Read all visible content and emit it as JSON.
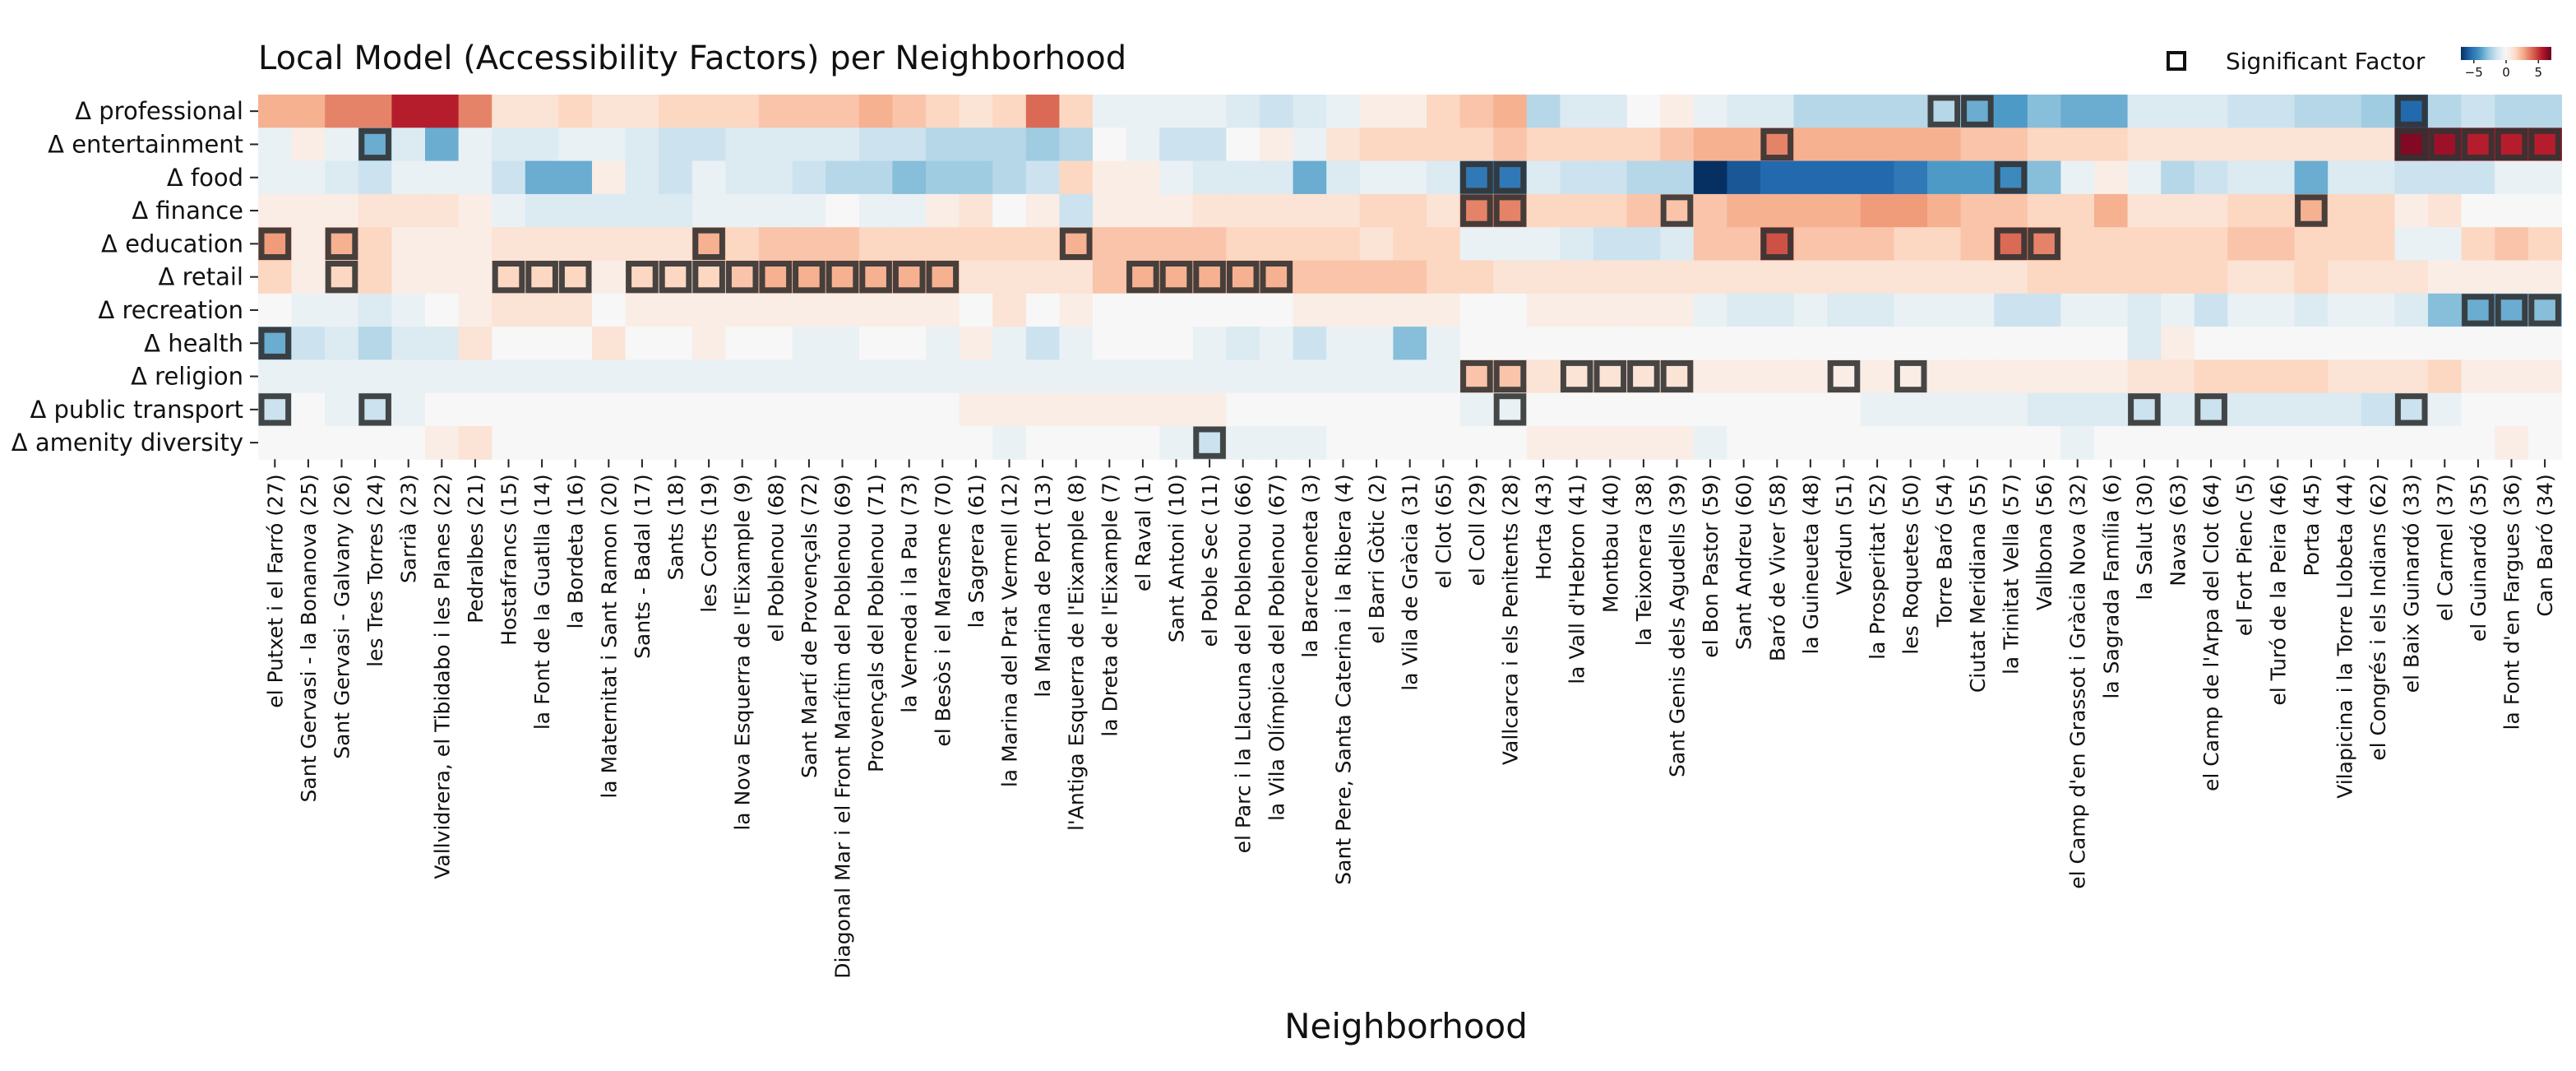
{
  "chart_data": {
    "type": "heatmap",
    "title": "Local Model (Accessibility Factors) per Neighborhood",
    "xlabel": "Neighborhood",
    "ylabel": "",
    "legend": {
      "marker_label": "Significant Factor",
      "placement": "top-right"
    },
    "colorbar": {
      "colormap": "RdBu_r",
      "range": [
        -7,
        7
      ],
      "ticks": [
        -5,
        0,
        5
      ],
      "tick_labels": [
        "−5",
        "0",
        "5"
      ],
      "placement": "top-right"
    },
    "rows": [
      "Δ professional",
      "Δ entertainment",
      "Δ food",
      "Δ finance",
      "Δ education",
      "Δ retail",
      "Δ recreation",
      "Δ health",
      "Δ religion",
      "Δ public transport",
      "Δ amenity diversity"
    ],
    "columns": [
      "el Putxet i el Farró (27)",
      "Sant Gervasi - la Bonanova (25)",
      "Sant Gervasi - Galvany (26)",
      "les Tres Torres (24)",
      "Sarrià (23)",
      "Vallvidrera, el Tibidabo i les Planes (22)",
      "Pedralbes (21)",
      "Hostafrancs (15)",
      "la Font de la Guatlla (14)",
      "la Bordeta (16)",
      "la Maternitat i Sant Ramon (20)",
      "Sants - Badal (17)",
      "Sants (18)",
      "les Corts (19)",
      "la Nova Esquerra de l'Eixample (9)",
      "el Poblenou (68)",
      "Sant Martí de Provençals (72)",
      "Diagonal Mar i el Front Marítim del Poblenou (69)",
      "Provençals del Poblenou (71)",
      "la Verneda i la Pau (73)",
      "el Besòs i el Maresme (70)",
      "la Sagrera (61)",
      "la Marina del Prat Vermell (12)",
      "la Marina de Port (13)",
      "l'Antiga Esquerra de l'Eixample (8)",
      "la Dreta de l'Eixample (7)",
      "el Raval (1)",
      "Sant Antoni (10)",
      "el Poble Sec (11)",
      "el Parc i la Llacuna del Poblenou (66)",
      "la Vila Olímpica del Poblenou (67)",
      "la Barceloneta (3)",
      "Sant Pere, Santa Caterina i la Ribera (4)",
      "el Barri Gòtic (2)",
      "la Vila de Gràcia (31)",
      "el Clot (65)",
      "el Coll (29)",
      "Vallcarca i els Penitents (28)",
      "Horta (43)",
      "la Vall d'Hebron (41)",
      "Montbau (40)",
      "la Teixonera (38)",
      "Sant Genis dels Agudells (39)",
      "el Bon Pastor (59)",
      "Sant Andreu (60)",
      "Baró de Viver (58)",
      "la Guineueta (48)",
      "Verdun (51)",
      "la Prosperitat (52)",
      "les Roquetes (50)",
      "Torre Baró (54)",
      "Ciutat Meridiana (55)",
      "la Trinitat Vella (57)",
      "Vallbona (56)",
      "el Camp d'en Grassot i Gràcia Nova (32)",
      "la Sagrada Família (6)",
      "la Salut (30)",
      "Navas (63)",
      "el Camp de l'Arpa del Clot (64)",
      "el Fort Pienc (5)",
      "el Turó de la Peira (46)",
      "Porta (45)",
      "Vilapicina i la Torre Llobeta (44)",
      "el Congrés i els Indians (62)",
      "el Baix Guinardó (33)",
      "el Carmel (37)",
      "el Guinardó (35)",
      "la Font d'en Fargues (36)",
      "Can Baró (34)"
    ],
    "values": [
      [
        2.5,
        2.5,
        3.5,
        3.5,
        5.5,
        5.5,
        3.5,
        1,
        1,
        1.5,
        1,
        1,
        1.5,
        1.5,
        1.5,
        2,
        2,
        2,
        2.5,
        2,
        1.5,
        1,
        1.5,
        4,
        1.5,
        -0.5,
        -0.5,
        -0.5,
        -0.5,
        -1,
        -1.5,
        -1,
        -0.5,
        0.5,
        0.5,
        1.5,
        2,
        2.5,
        -2,
        -1,
        -1,
        0,
        0.5,
        -0.5,
        -1,
        -1,
        -2,
        -2,
        -2,
        -2,
        -2,
        -3.5,
        -4,
        -3,
        -3.5,
        -3.5,
        -1,
        -1,
        -1,
        -1.5,
        -1.5,
        -2,
        -2,
        -2.5,
        -5.5,
        -2,
        -1.5,
        -2,
        -2
      ],
      [
        -0.5,
        0.5,
        -0.5,
        -3.5,
        -1,
        -3.5,
        -0.5,
        -1,
        -1,
        -0.5,
        -0.5,
        -1,
        -1.5,
        -1.5,
        -1,
        -1,
        -1,
        -1,
        -1.5,
        -1.5,
        -2,
        -2,
        -2,
        -2.5,
        -2,
        0,
        -0.5,
        -1.5,
        -1.5,
        0,
        0.5,
        -0.5,
        1,
        1.5,
        1.5,
        1.5,
        1.5,
        2,
        1.5,
        1.5,
        1.5,
        1.5,
        2,
        2.5,
        2.5,
        3.5,
        2.5,
        2.5,
        2.5,
        2.5,
        2.5,
        2,
        2,
        1.5,
        1.5,
        1.5,
        1,
        1,
        1,
        1,
        1,
        1,
        1,
        1,
        6.5,
        6,
        5.5,
        5.5,
        5.5
      ],
      [
        -0.5,
        -0.5,
        -1,
        -1.5,
        -0.5,
        -0.5,
        -0.5,
        -1.5,
        -3.5,
        -3.5,
        0.5,
        -1,
        -1.5,
        -0.5,
        -1,
        -1,
        -1.5,
        -2,
        -2,
        -3,
        -2.5,
        -2.5,
        -2,
        -1.5,
        1.5,
        0.5,
        0.5,
        -0.5,
        -1,
        -1,
        -1,
        -3.5,
        -1,
        -0.5,
        -0.5,
        -1,
        -5,
        -5,
        -1,
        -1.5,
        -1.5,
        -2,
        -2,
        -7,
        -6,
        -5.5,
        -5.5,
        -5.5,
        -5.5,
        -5,
        -4,
        -4,
        -4.5,
        -3,
        -0.5,
        0.5,
        -0.5,
        -2,
        -1.5,
        -1,
        -1,
        -3.5,
        -1,
        -1,
        -1.5,
        -1.5,
        -1.5,
        -0.5,
        -0.5
      ],
      [
        0.5,
        0.5,
        0.5,
        1,
        1,
        1,
        0.5,
        -0.5,
        -1,
        -1,
        -1,
        -1,
        -1,
        -0.5,
        -0.5,
        -0.5,
        -0.5,
        0,
        -0.5,
        -0.5,
        0.5,
        1,
        0,
        0.5,
        -1.5,
        0.5,
        0.5,
        0.5,
        1,
        1,
        1,
        1,
        1,
        1.5,
        1.5,
        1,
        3.5,
        3.5,
        1.5,
        1.5,
        1.5,
        2,
        2,
        2,
        2.5,
        2.5,
        2.5,
        2.5,
        3,
        3,
        2.5,
        2,
        2,
        1.5,
        1.5,
        2.5,
        1,
        1,
        1,
        1.5,
        1.5,
        2.5,
        1.5,
        1.5,
        0.5,
        1,
        0,
        0,
        0
      ],
      [
        3,
        0.5,
        2.5,
        1.5,
        0.5,
        0.5,
        0.5,
        1,
        1,
        1,
        1,
        1,
        1,
        2.5,
        1.5,
        2,
        2,
        2,
        1.5,
        1.5,
        1.5,
        1.5,
        1.5,
        1.5,
        2.5,
        2,
        2,
        2,
        2,
        1.5,
        1.5,
        1.5,
        1.5,
        1,
        1.5,
        1.5,
        -0.5,
        -0.5,
        -0.5,
        -1,
        -1.5,
        -1.5,
        -1,
        2,
        2,
        4.5,
        2,
        2,
        2,
        1.5,
        1.5,
        2,
        4,
        3.5,
        1.5,
        1.5,
        1.5,
        1.5,
        1.5,
        2,
        2,
        1.5,
        1.5,
        1.5,
        -0.5,
        -0.5,
        1.5,
        2,
        1.5
      ],
      [
        1.5,
        0.5,
        1.5,
        1.5,
        0.5,
        0.5,
        0.5,
        1.5,
        1.5,
        1.5,
        0.5,
        1.5,
        1.5,
        1.5,
        2,
        2.5,
        2.5,
        2.5,
        2.5,
        2.5,
        2.5,
        1,
        1,
        1,
        1,
        2,
        2.5,
        2.5,
        2.5,
        2.5,
        2.5,
        2,
        2,
        2,
        2,
        1.5,
        1.5,
        1,
        1,
        1,
        1,
        1,
        1,
        1,
        1,
        1,
        1,
        1,
        1,
        1,
        1,
        1,
        1,
        1.5,
        1.5,
        1.5,
        1.5,
        1.5,
        1.5,
        1,
        1,
        1.5,
        1,
        1,
        1,
        0.5,
        0.5,
        0.5,
        0.5
      ],
      [
        0,
        -0.5,
        -0.5,
        -1,
        -0.5,
        0,
        0.5,
        1,
        1,
        1,
        0,
        0.5,
        0.5,
        0.5,
        0.5,
        0.5,
        0.5,
        0.5,
        0.5,
        0.5,
        0.5,
        0,
        1,
        0,
        0.5,
        0,
        0,
        0,
        0,
        0,
        0,
        0.5,
        0.5,
        0.5,
        0.5,
        0.5,
        0,
        0,
        0.5,
        0.5,
        0.5,
        0.5,
        0.5,
        -0.5,
        -1,
        -1,
        -0.5,
        -1,
        -1,
        -0.5,
        -0.5,
        -0.5,
        -1.5,
        -1.5,
        -0.5,
        -0.5,
        -1,
        -0.5,
        -1.5,
        -0.5,
        -0.5,
        -1,
        -0.5,
        -0.5,
        -1,
        -3,
        -3.5,
        -3.5,
        -3
      ],
      [
        -3.5,
        -1.5,
        -1,
        -2,
        -1,
        -1,
        1,
        0,
        0,
        0,
        1,
        0,
        0,
        0.5,
        0,
        0,
        -0.5,
        -0.5,
        0,
        0,
        -0.5,
        0.5,
        -0.5,
        -1.5,
        -0.5,
        0,
        0,
        0,
        -0.5,
        -1,
        -0.5,
        -1.5,
        -0.5,
        -0.5,
        -3,
        -0.5,
        0,
        0,
        0,
        0,
        0,
        0,
        0,
        0,
        0,
        0,
        0,
        0,
        0,
        0,
        0,
        0,
        0,
        0,
        0,
        0,
        -1,
        0.5,
        0,
        0,
        0,
        0,
        0,
        0,
        0,
        0,
        0,
        0,
        0
      ],
      [
        -0.5,
        -0.5,
        -0.5,
        -0.5,
        -0.5,
        -0.5,
        -0.5,
        -0.5,
        -0.5,
        -0.5,
        -0.5,
        -0.5,
        -0.5,
        -0.5,
        -0.5,
        -0.5,
        -0.5,
        -0.5,
        -0.5,
        -0.5,
        -0.5,
        -0.5,
        -0.5,
        -0.5,
        -0.5,
        -0.5,
        -0.5,
        -0.5,
        -0.5,
        -0.5,
        -0.5,
        -0.5,
        -0.5,
        -0.5,
        -0.5,
        -0.5,
        2,
        2,
        1,
        1,
        1,
        1,
        1,
        0.5,
        0.5,
        0.5,
        0.5,
        0.5,
        0.5,
        0.5,
        0.5,
        0.5,
        0.5,
        0.5,
        0.5,
        0.5,
        1,
        1,
        1.5,
        1.5,
        1.5,
        1.5,
        1,
        1,
        1,
        1.5,
        0.5,
        0.5,
        0.5
      ],
      [
        -1.5,
        0,
        -0.5,
        -1.5,
        -0.5,
        0,
        0,
        0,
        0,
        0,
        0,
        0,
        0,
        0,
        0,
        0,
        0,
        0,
        0,
        0,
        0,
        0.5,
        0.5,
        0.5,
        0.5,
        0.5,
        0.5,
        0.5,
        0.5,
        0,
        0,
        0,
        0,
        0,
        0,
        0,
        -0.5,
        -0.5,
        0,
        0,
        0,
        0,
        0,
        0,
        0,
        0,
        0,
        0,
        -0.5,
        -0.5,
        -0.5,
        -0.5,
        -0.5,
        -1,
        -1,
        -1,
        -1.5,
        -1,
        -1.5,
        -1,
        -1,
        -1,
        -1,
        -1.5,
        -1.5,
        -0.5,
        0,
        0,
        0
      ],
      [
        0,
        0,
        0,
        0,
        0,
        0.5,
        1,
        0,
        0,
        0,
        0,
        0,
        0,
        0,
        0,
        0,
        0,
        0,
        0,
        0,
        0,
        0,
        -0.5,
        0,
        0,
        0,
        0,
        -0.5,
        -1.5,
        -0.5,
        -0.5,
        -0.5,
        0,
        0,
        0,
        0,
        0,
        0,
        0.5,
        0.5,
        0.5,
        0.5,
        0.5,
        -0.5,
        0,
        0,
        0,
        0,
        0,
        0,
        0,
        0,
        0,
        0,
        -0.5,
        0,
        0,
        0,
        0,
        0,
        0,
        0,
        0,
        0,
        0,
        0,
        0,
        0.5,
        0
      ]
    ],
    "significant": [
      [
        0,
        50
      ],
      [
        0,
        51
      ],
      [
        0,
        64
      ],
      [
        1,
        3
      ],
      [
        1,
        45
      ],
      [
        1,
        64
      ],
      [
        1,
        65
      ],
      [
        1,
        66
      ],
      [
        1,
        67
      ],
      [
        1,
        68
      ],
      [
        2,
        36
      ],
      [
        2,
        37
      ],
      [
        2,
        52
      ],
      [
        3,
        36
      ],
      [
        3,
        37
      ],
      [
        3,
        42
      ],
      [
        3,
        61
      ],
      [
        4,
        0
      ],
      [
        4,
        2
      ],
      [
        4,
        13
      ],
      [
        4,
        24
      ],
      [
        4,
        45
      ],
      [
        4,
        52
      ],
      [
        4,
        53
      ],
      [
        5,
        2
      ],
      [
        5,
        7
      ],
      [
        5,
        8
      ],
      [
        5,
        9
      ],
      [
        5,
        11
      ],
      [
        5,
        12
      ],
      [
        5,
        13
      ],
      [
        5,
        14
      ],
      [
        5,
        15
      ],
      [
        5,
        16
      ],
      [
        5,
        17
      ],
      [
        5,
        18
      ],
      [
        5,
        19
      ],
      [
        5,
        20
      ],
      [
        5,
        26
      ],
      [
        5,
        27
      ],
      [
        5,
        28
      ],
      [
        5,
        29
      ],
      [
        5,
        30
      ],
      [
        6,
        66
      ],
      [
        6,
        67
      ],
      [
        6,
        68
      ],
      [
        7,
        0
      ],
      [
        8,
        36
      ],
      [
        8,
        37
      ],
      [
        8,
        39
      ],
      [
        8,
        40
      ],
      [
        8,
        41
      ],
      [
        8,
        42
      ],
      [
        8,
        47
      ],
      [
        8,
        49
      ],
      [
        9,
        0
      ],
      [
        9,
        3
      ],
      [
        9,
        37
      ],
      [
        9,
        56
      ],
      [
        9,
        58
      ],
      [
        9,
        64
      ],
      [
        10,
        28
      ]
    ]
  }
}
